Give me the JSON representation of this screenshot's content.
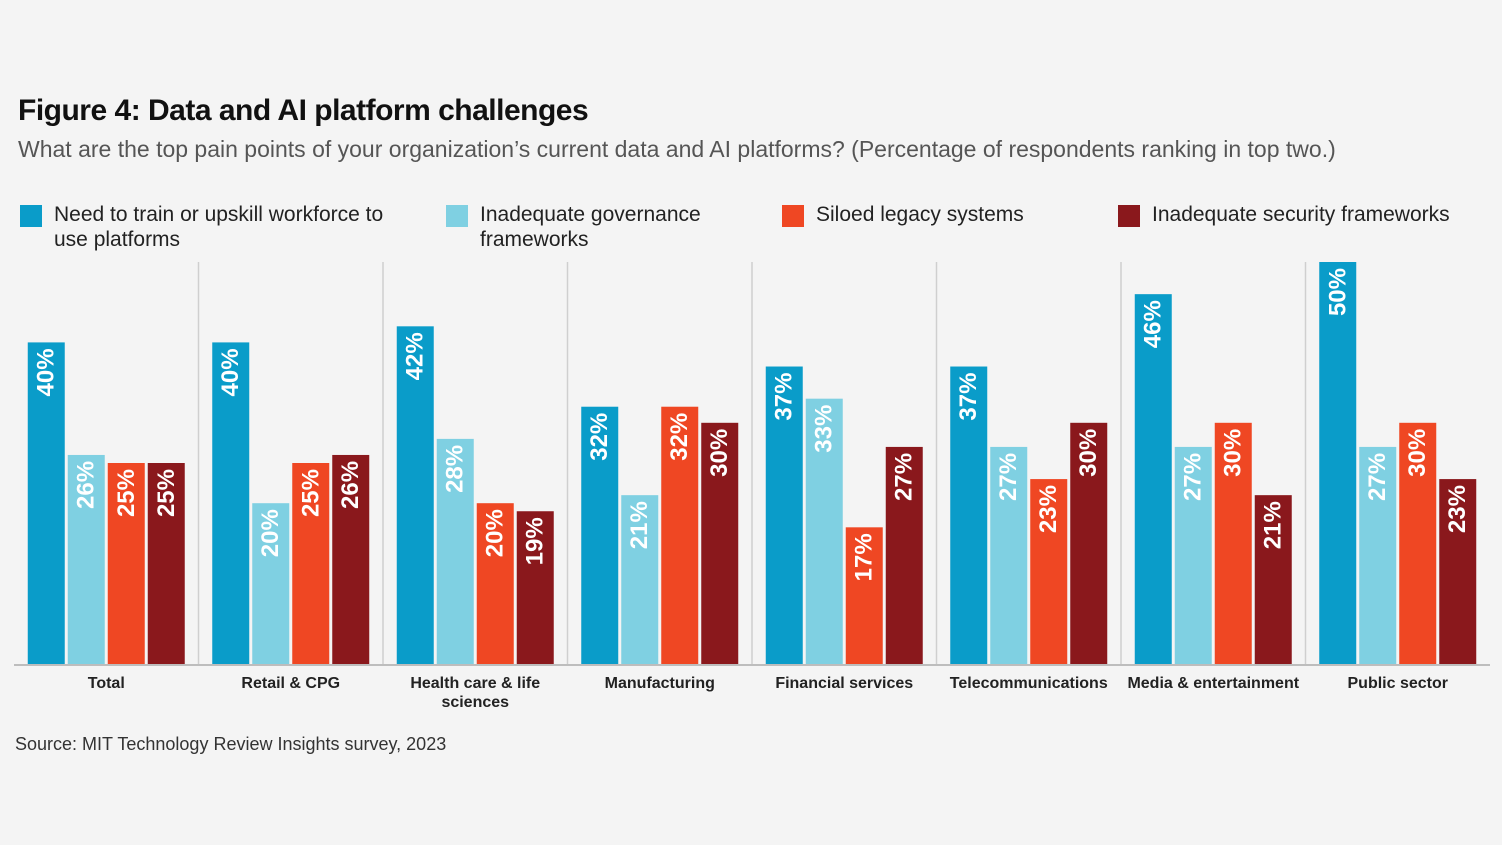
{
  "chart_data": {
    "type": "bar",
    "title": "Figure 4: Data and AI platform challenges",
    "subtitle": "What are the top pain points of your organization’s current data and AI platforms? (Percentage of respondents ranking in top two.)",
    "source": "Source: MIT Technology Review Insights survey, 2023",
    "categories": [
      "Total",
      "Retail & CPG",
      "Health care & life sciences",
      "Manufacturing",
      "Financial services",
      "Telecommunications",
      "Media & entertainment",
      "Public sector"
    ],
    "series": [
      {
        "name": "Need to train or upskill workforce to use platforms",
        "color": "#0a9cc9",
        "values": [
          40,
          40,
          42,
          32,
          37,
          37,
          46,
          50
        ],
        "value_labels": [
          "40%",
          "40%",
          "42%",
          "32%",
          "37%",
          "37%",
          "46%",
          "50%"
        ]
      },
      {
        "name": "Inadequate governance frameworks",
        "color": "#7fd0e2",
        "values": [
          26,
          20,
          28,
          21,
          33,
          27,
          27,
          27
        ],
        "value_labels": [
          "26%",
          "20%",
          "28%",
          "21%",
          "33%",
          "27%",
          "27%",
          "27%"
        ]
      },
      {
        "name": "Siloed legacy systems",
        "color": "#ef4723",
        "values": [
          25,
          25,
          20,
          32,
          17,
          23,
          30,
          30
        ],
        "value_labels": [
          "25%",
          "25%",
          "20%",
          "32%",
          "17%",
          "23%",
          "30%",
          "30%"
        ]
      },
      {
        "name": "Inadequate security frameworks",
        "color": "#8a181c",
        "values": [
          25,
          26,
          19,
          30,
          27,
          30,
          21,
          23
        ],
        "value_labels": [
          "25%",
          "26%",
          "19%",
          "30%",
          "27%",
          "30%",
          "21%",
          "23%"
        ]
      }
    ]
  }
}
